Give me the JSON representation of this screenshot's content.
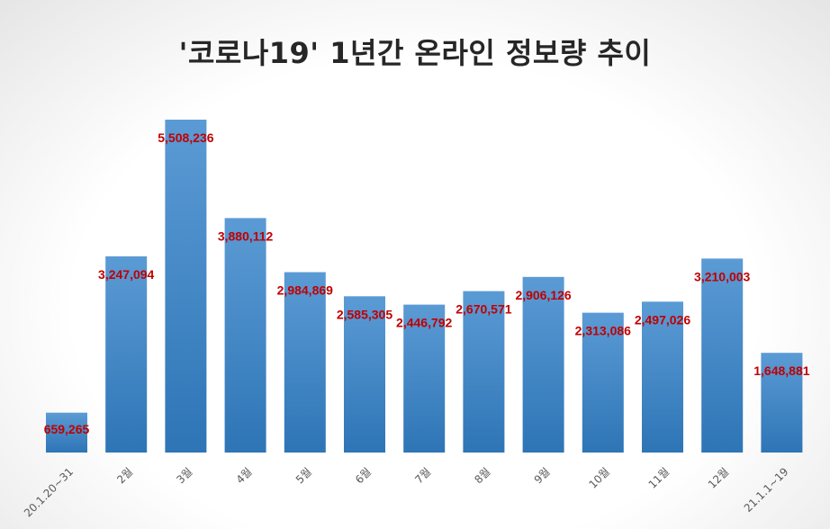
{
  "chart_data": {
    "type": "bar",
    "title": "'코로나19' 1년간 온라인 정보량 추이",
    "xlabel": "",
    "ylabel": "",
    "categories": [
      "20.1.20~31",
      "2월",
      "3월",
      "4월",
      "5월",
      "6월",
      "7월",
      "8월",
      "9월",
      "10월",
      "11월",
      "12월",
      "21.1.1~19"
    ],
    "values": [
      659265,
      3247094,
      5508236,
      3880112,
      2984869,
      2585305,
      2446792,
      2670571,
      2906126,
      2313086,
      2497026,
      3210003,
      1648881
    ],
    "value_labels": [
      "659,265",
      "3,247,094",
      "5,508,236",
      "3,880,112",
      "2,984,869",
      "2,585,305",
      "2,446,792",
      "2,670,571",
      "2,906,126",
      "2,313,086",
      "2,497,026",
      "3,210,003",
      "1,648,881"
    ],
    "ylim": [
      0,
      5508236
    ],
    "grid": false,
    "legend": "none",
    "colors": {
      "bar_top": "#5b9bd5",
      "bar_bottom": "#2e75b6",
      "value_label": "#c00000",
      "tick_label": "#595959",
      "title": "#262626"
    }
  }
}
